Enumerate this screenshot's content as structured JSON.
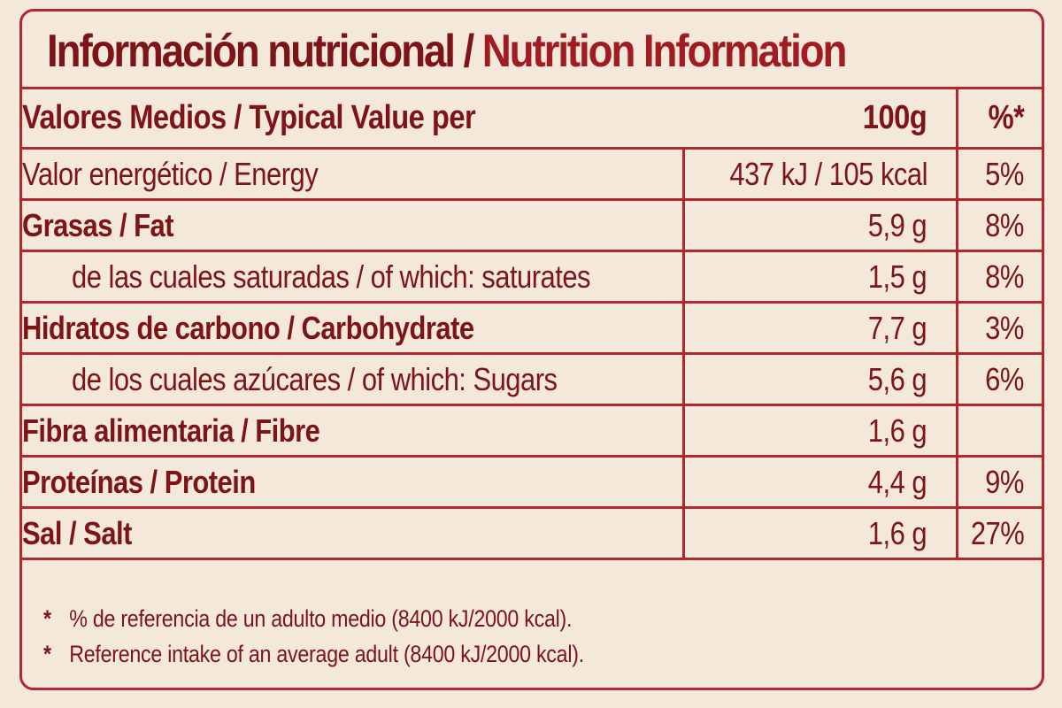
{
  "title": {
    "es": "Información nutricional /",
    "en": "Nutrition Information"
  },
  "header": {
    "label": "Valores Medios / Typical Value per",
    "per": "100g",
    "pct": "%*"
  },
  "rows": [
    {
      "name": "Valor energético / Energy",
      "value": "437 kJ / 105 kcal",
      "pct": "5%"
    },
    {
      "name": "Grasas / Fat",
      "value": "5,9 g",
      "pct": "8%"
    },
    {
      "name": "de las cuales saturadas / of which: saturates",
      "value": "1,5 g",
      "pct": "8%"
    },
    {
      "name": "Hidratos de carbono / Carbohydrate",
      "value": "7,7 g",
      "pct": "3%"
    },
    {
      "name": "de los cuales azúcares / of which: Sugars",
      "value": "5,6 g",
      "pct": "6%"
    },
    {
      "name": "Fibra alimentaria / Fibre",
      "value": "1,6 g",
      "pct": ""
    },
    {
      "name": "Proteínas / Protein",
      "value": "4,4 g",
      "pct": "9%"
    },
    {
      "name": "Sal / Salt",
      "value": "1,6 g",
      "pct": "27%"
    }
  ],
  "footnotes": [
    {
      "mark": "*",
      "text": "% de referencia de un adulto medio (8400 kJ/2000 kcal)."
    },
    {
      "mark": "*",
      "text": "Reference intake of an average adult (8400 kJ/2000 kcal)."
    }
  ]
}
